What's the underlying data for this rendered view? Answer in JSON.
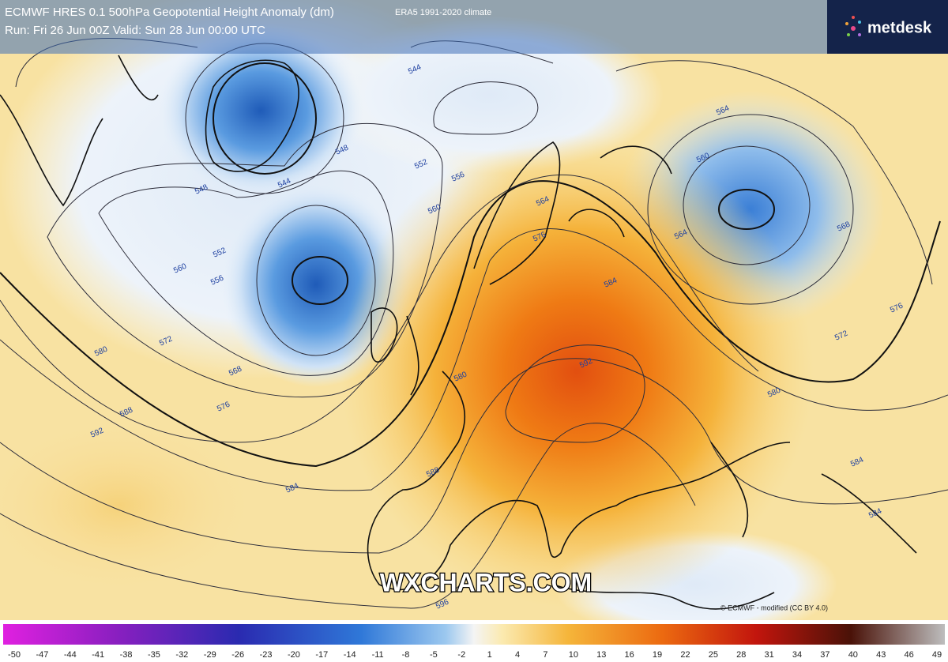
{
  "header": {
    "title": "ECMWF HRES 0.1 500hPa Geopotential Height Anomaly (dm)",
    "climate": "ERA5 1991-2020 climate",
    "run": "Run: Fri 26 Jun 00Z Valid: Sun 28 Jun 00:00 UTC",
    "logo": "metdesk"
  },
  "map": {
    "contour_labels": [
      544,
      548,
      544,
      548,
      552,
      556,
      560,
      564,
      576,
      552,
      556,
      560,
      572,
      568,
      576,
      580,
      588,
      592,
      584,
      588,
      596,
      580,
      592,
      584,
      564,
      560,
      564,
      568,
      572,
      576,
      580,
      584,
      584
    ],
    "watermark": "WXCHARTS.COM",
    "credit": "© ECMWF - modified (CC BY 4.0)"
  },
  "colorbar": {
    "labels": [
      -50,
      -47,
      -44,
      -41,
      -38,
      -35,
      -32,
      -29,
      -26,
      -23,
      -20,
      -17,
      -14,
      -11,
      -8,
      -5,
      -2,
      1,
      4,
      7,
      10,
      13,
      16,
      19,
      22,
      25,
      28,
      31,
      34,
      37,
      40,
      43,
      46,
      49
    ]
  }
}
